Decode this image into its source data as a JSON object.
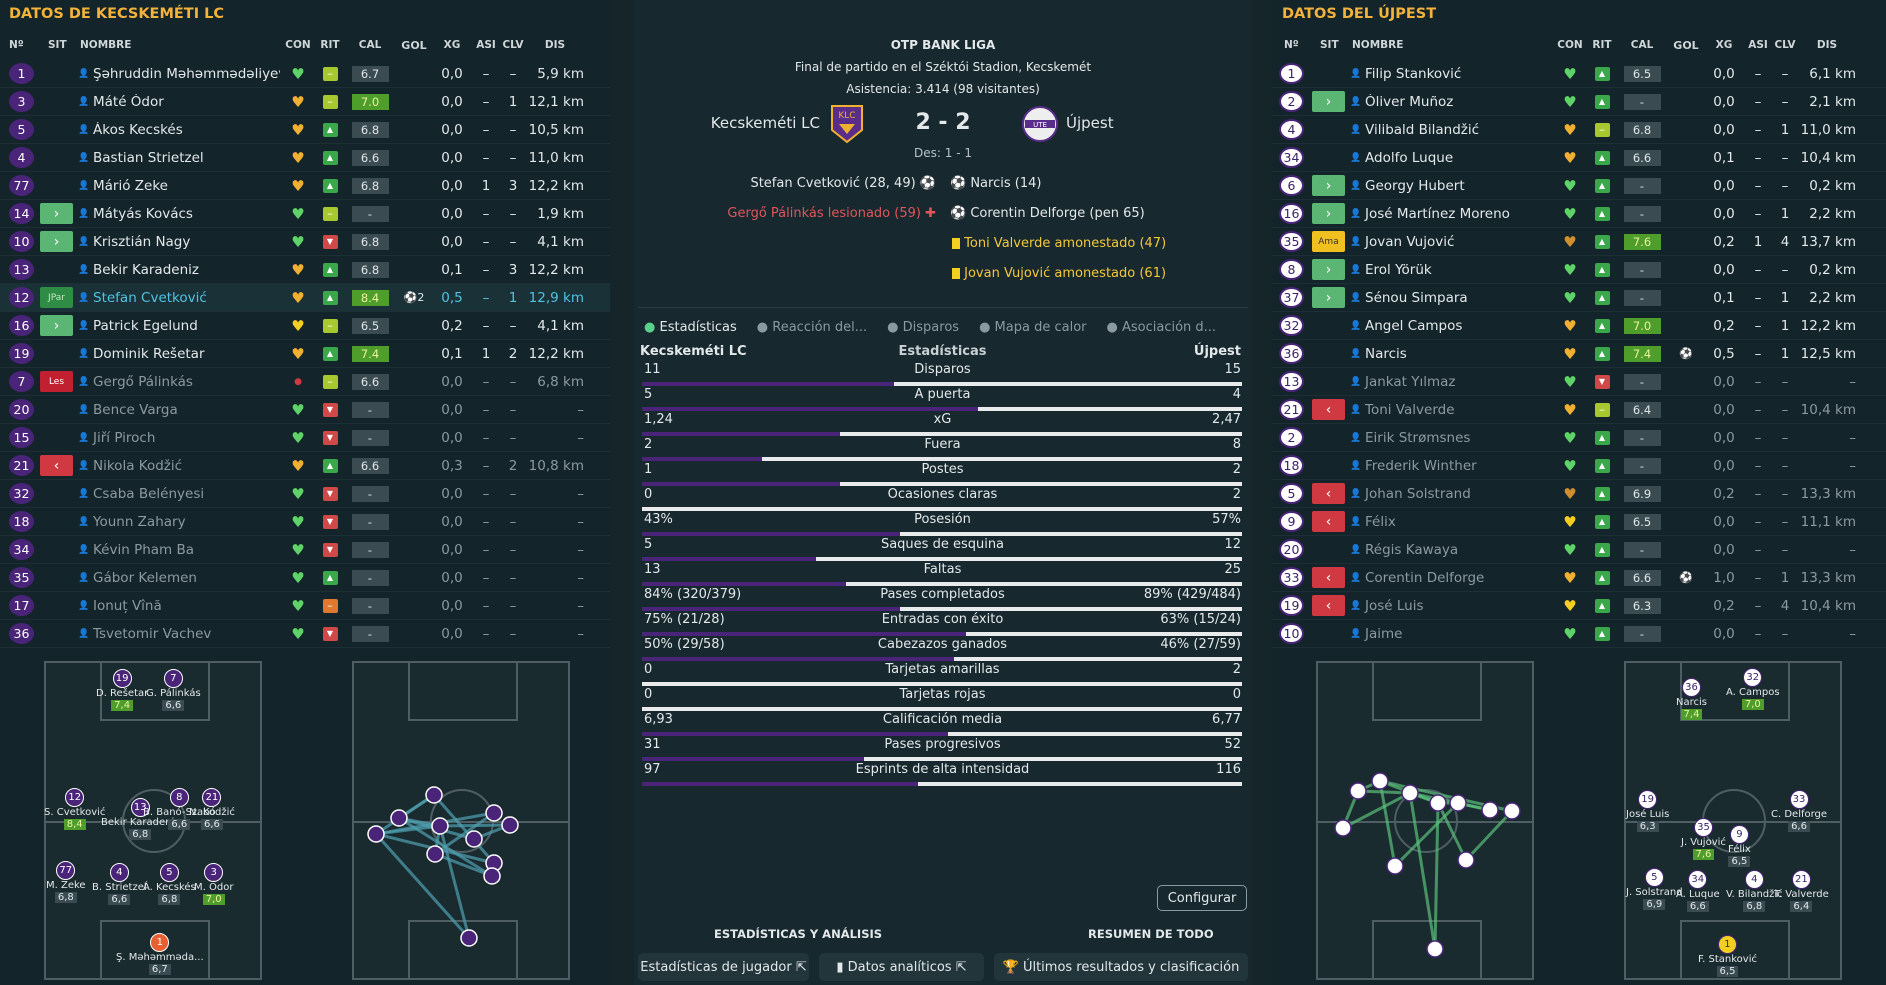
{
  "left": {
    "title": "DATOS DE KECSKEMÉTI LC",
    "headers": {
      "num": "Nº",
      "sit": "SIT",
      "name": "NOMBRE",
      "con": "CON",
      "rit": "RIT",
      "cal": "CAL",
      "gol": "GOL",
      "xg": "XG",
      "asi": "ASI",
      "clv": "CLV",
      "dis": "DIS"
    },
    "players": [
      {
        "n": "1",
        "sit": "",
        "name": "Şəhruddin Məhəmmədəliyev",
        "heart": "green",
        "rit": "-",
        "cal": "6.7",
        "calg": false,
        "gol": "",
        "xg": "0,0",
        "asi": "–",
        "clv": "–",
        "dis": "5,9 km",
        "dim": false
      },
      {
        "n": "3",
        "sit": "",
        "name": "Máté Ódor",
        "heart": "orange",
        "rit": "-",
        "cal": "7.0",
        "calg": true,
        "gol": "",
        "xg": "0,0",
        "asi": "–",
        "clv": "1",
        "dis": "12,1 km",
        "dim": false
      },
      {
        "n": "5",
        "sit": "",
        "name": "Ákos Kecskés",
        "heart": "orange",
        "rit": "up",
        "cal": "6.8",
        "calg": false,
        "gol": "",
        "xg": "0,0",
        "asi": "–",
        "clv": "–",
        "dis": "10,5 km",
        "dim": false
      },
      {
        "n": "4",
        "sit": "",
        "name": "Bastian Strietzel",
        "heart": "orange",
        "rit": "up",
        "cal": "6.6",
        "calg": false,
        "gol": "",
        "xg": "0,0",
        "asi": "–",
        "clv": "–",
        "dis": "11,0 km",
        "dim": false
      },
      {
        "n": "77",
        "sit": "",
        "name": "Márió Zeke",
        "heart": "orange",
        "rit": "up",
        "cal": "6.8",
        "calg": false,
        "gol": "",
        "xg": "0,0",
        "asi": "1",
        "clv": "3",
        "dis": "12,2 km",
        "dim": false
      },
      {
        "n": "14",
        "sit": "in",
        "name": "Mátyás Kovács",
        "heart": "green",
        "rit": "-",
        "cal": "-",
        "calg": false,
        "gol": "",
        "xg": "0,0",
        "asi": "–",
        "clv": "–",
        "dis": "1,9 km",
        "dim": false
      },
      {
        "n": "10",
        "sit": "in",
        "name": "Krisztián Nagy",
        "heart": "green",
        "rit": "down",
        "cal": "6.8",
        "calg": false,
        "gol": "",
        "xg": "0,0",
        "asi": "–",
        "clv": "–",
        "dis": "4,1 km",
        "dim": false
      },
      {
        "n": "13",
        "sit": "",
        "name": "Bekir Karadeniz",
        "heart": "orange",
        "rit": "up",
        "cal": "6.8",
        "calg": false,
        "gol": "",
        "xg": "0,1",
        "asi": "–",
        "clv": "3",
        "dis": "12,2 km",
        "dim": false
      },
      {
        "n": "12",
        "sit": "jpar",
        "sitlabel": "JPar",
        "name": "Stefan Cvetković",
        "heart": "orange",
        "rit": "up",
        "cal": "8.4",
        "calg": true,
        "gol": "2",
        "xg": "0,5",
        "asi": "–",
        "clv": "1",
        "dis": "12,9 km",
        "dim": false,
        "hl": true
      },
      {
        "n": "16",
        "sit": "in",
        "name": "Patrick Egelund",
        "heart": "yellow",
        "rit": "-",
        "cal": "6.5",
        "calg": false,
        "gol": "",
        "xg": "0,2",
        "asi": "–",
        "clv": "–",
        "dis": "4,1 km",
        "dim": false
      },
      {
        "n": "19",
        "sit": "",
        "name": "Dominik Rešetar",
        "heart": "orange",
        "rit": "up",
        "cal": "7.4",
        "calg": true,
        "gol": "",
        "xg": "0,1",
        "asi": "1",
        "clv": "2",
        "dis": "12,2 km",
        "dim": false
      },
      {
        "n": "7",
        "sit": "les",
        "sitlabel": "Les",
        "name": "Gergő Pálinkás",
        "heart": "red",
        "rit": "-",
        "cal": "6.6",
        "calg": false,
        "gol": "",
        "xg": "0,0",
        "asi": "–",
        "clv": "–",
        "dis": "6,8 km",
        "dim": true
      },
      {
        "n": "20",
        "sit": "",
        "name": "Bence Varga",
        "heart": "green",
        "rit": "down",
        "cal": "-",
        "calg": false,
        "gol": "",
        "xg": "0,0",
        "asi": "–",
        "clv": "–",
        "dis": "–",
        "dim": true
      },
      {
        "n": "15",
        "sit": "",
        "name": "Jiří Piroch",
        "heart": "green",
        "rit": "down",
        "cal": "-",
        "calg": false,
        "gol": "",
        "xg": "0,0",
        "asi": "–",
        "clv": "–",
        "dis": "–",
        "dim": true
      },
      {
        "n": "21",
        "sit": "out",
        "name": "Nikola Kodžić",
        "heart": "orange",
        "rit": "up",
        "cal": "6.6",
        "calg": false,
        "gol": "",
        "xg": "0,3",
        "asi": "–",
        "clv": "2",
        "dis": "10,8 km",
        "dim": true
      },
      {
        "n": "32",
        "sit": "",
        "name": "Csaba Belényesi",
        "heart": "green",
        "rit": "down",
        "cal": "-",
        "calg": false,
        "gol": "",
        "xg": "0,0",
        "asi": "–",
        "clv": "–",
        "dis": "–",
        "dim": true
      },
      {
        "n": "18",
        "sit": "",
        "name": "Younn Zahary",
        "heart": "green",
        "rit": "down",
        "cal": "-",
        "calg": false,
        "gol": "",
        "xg": "0,0",
        "asi": "–",
        "clv": "–",
        "dis": "–",
        "dim": true
      },
      {
        "n": "34",
        "sit": "",
        "name": "Kévin Pham Ba",
        "heart": "green",
        "rit": "down",
        "cal": "-",
        "calg": false,
        "gol": "",
        "xg": "0,0",
        "asi": "–",
        "clv": "–",
        "dis": "–",
        "dim": true
      },
      {
        "n": "35",
        "sit": "",
        "name": "Gábor Kelemen",
        "heart": "green",
        "rit": "up",
        "cal": "-",
        "calg": false,
        "gol": "",
        "xg": "0,0",
        "asi": "–",
        "clv": "–",
        "dis": "–",
        "dim": true
      },
      {
        "n": "17",
        "sit": "",
        "name": "Ionuț Vînă",
        "heart": "green",
        "rit": "-o",
        "cal": "-",
        "calg": false,
        "gol": "",
        "xg": "0,0",
        "asi": "–",
        "clv": "–",
        "dis": "–",
        "dim": true
      },
      {
        "n": "36",
        "sit": "",
        "name": "Tsvetomir Vachev",
        "heart": "green",
        "rit": "down",
        "cal": "-",
        "calg": false,
        "gol": "",
        "xg": "0,0",
        "asi": "–",
        "clv": "–",
        "dis": "–",
        "dim": true
      }
    ]
  },
  "right": {
    "title": "DATOS DEL ÚJPEST",
    "headers": {
      "num": "Nº",
      "sit": "SIT",
      "name": "NOMBRE",
      "con": "CON",
      "rit": "RIT",
      "cal": "CAL",
      "gol": "GOL",
      "xg": "XG",
      "asi": "ASI",
      "clv": "CLV",
      "dis": "DIS"
    },
    "players": [
      {
        "n": "1",
        "sit": "",
        "name": "Filip Stanković",
        "heart": "green",
        "rit": "up",
        "cal": "6.5",
        "calg": false,
        "gol": "",
        "xg": "0,0",
        "asi": "–",
        "clv": "–",
        "dis": "6,1 km",
        "dim": false
      },
      {
        "n": "2",
        "sit": "in",
        "name": "Óliver Muñoz",
        "heart": "green",
        "rit": "up",
        "cal": "-",
        "calg": false,
        "gol": "",
        "xg": "0,0",
        "asi": "–",
        "clv": "–",
        "dis": "2,1 km",
        "dim": false
      },
      {
        "n": "4",
        "sit": "",
        "name": "Vilibald Bilandžić",
        "heart": "orange",
        "rit": "-",
        "cal": "6.8",
        "calg": false,
        "gol": "",
        "xg": "0,0",
        "asi": "–",
        "clv": "1",
        "dis": "11,0 km",
        "dim": false
      },
      {
        "n": "34",
        "sit": "",
        "name": "Adolfo Luque",
        "heart": "orange",
        "rit": "up",
        "cal": "6.6",
        "calg": false,
        "gol": "",
        "xg": "0,1",
        "asi": "–",
        "clv": "–",
        "dis": "10,4 km",
        "dim": false
      },
      {
        "n": "6",
        "sit": "in",
        "name": "Georgy Hubert",
        "heart": "green",
        "rit": "up",
        "cal": "-",
        "calg": false,
        "gol": "",
        "xg": "0,0",
        "asi": "–",
        "clv": "–",
        "dis": "0,2 km",
        "dim": false
      },
      {
        "n": "16",
        "sit": "in",
        "name": "José Martínez Moreno",
        "heart": "green",
        "rit": "up",
        "cal": "-",
        "calg": false,
        "gol": "",
        "xg": "0,0",
        "asi": "–",
        "clv": "1",
        "dis": "2,2 km",
        "dim": false
      },
      {
        "n": "35",
        "sit": "ama",
        "sitlabel": "Ama",
        "name": "Jovan Vujović",
        "heart": "orange2",
        "rit": "up",
        "cal": "7.6",
        "calg": true,
        "gol": "",
        "xg": "0,2",
        "asi": "1",
        "clv": "4",
        "dis": "13,7 km",
        "dim": false
      },
      {
        "n": "8",
        "sit": "in",
        "name": "Erol Yörük",
        "heart": "green",
        "rit": "up",
        "cal": "-",
        "calg": false,
        "gol": "",
        "xg": "0,0",
        "asi": "–",
        "clv": "–",
        "dis": "0,2 km",
        "dim": false
      },
      {
        "n": "37",
        "sit": "in",
        "name": "Sénou Simpara",
        "heart": "green",
        "rit": "up",
        "cal": "-",
        "calg": false,
        "gol": "",
        "xg": "0,1",
        "asi": "–",
        "clv": "1",
        "dis": "2,2 km",
        "dim": false
      },
      {
        "n": "32",
        "sit": "",
        "name": "Angel Campos",
        "heart": "orange",
        "rit": "up",
        "cal": "7.0",
        "calg": true,
        "gol": "",
        "xg": "0,2",
        "asi": "–",
        "clv": "1",
        "dis": "12,2 km",
        "dim": false
      },
      {
        "n": "36",
        "sit": "",
        "name": "Narcis",
        "heart": "orange",
        "rit": "up",
        "cal": "7.4",
        "calg": true,
        "gol": "1",
        "xg": "0,5",
        "asi": "–",
        "clv": "1",
        "dis": "12,5 km",
        "dim": false
      },
      {
        "n": "13",
        "sit": "",
        "name": "Jankat Yılmaz",
        "heart": "green",
        "rit": "down",
        "cal": "-",
        "calg": false,
        "gol": "",
        "xg": "0,0",
        "asi": "–",
        "clv": "–",
        "dis": "–",
        "dim": true
      },
      {
        "n": "21",
        "sit": "out",
        "name": "Toni Valverde",
        "heart": "orange",
        "rit": "-",
        "cal": "6.4",
        "calg": false,
        "gol": "",
        "xg": "0,0",
        "asi": "–",
        "clv": "–",
        "dis": "10,4 km",
        "dim": true
      },
      {
        "n": "2",
        "sit": "",
        "name": "Eirik Strømsnes",
        "heart": "green",
        "rit": "up",
        "cal": "-",
        "calg": false,
        "gol": "",
        "xg": "0,0",
        "asi": "–",
        "clv": "–",
        "dis": "–",
        "dim": true
      },
      {
        "n": "18",
        "sit": "",
        "name": "Frederik Winther",
        "heart": "green",
        "rit": "up",
        "cal": "-",
        "calg": false,
        "gol": "",
        "xg": "0,0",
        "asi": "–",
        "clv": "–",
        "dis": "–",
        "dim": true
      },
      {
        "n": "5",
        "sit": "out",
        "name": "Johan Solstrand",
        "heart": "orange2",
        "rit": "up",
        "cal": "6.9",
        "calg": false,
        "gol": "",
        "xg": "0,2",
        "asi": "–",
        "clv": "–",
        "dis": "13,3 km",
        "dim": true
      },
      {
        "n": "9",
        "sit": "out",
        "name": "Félix",
        "heart": "yellow",
        "rit": "up",
        "cal": "6.5",
        "calg": false,
        "gol": "",
        "xg": "0,0",
        "asi": "–",
        "clv": "–",
        "dis": "11,1 km",
        "dim": true
      },
      {
        "n": "20",
        "sit": "",
        "name": "Régis Kawaya",
        "heart": "green",
        "rit": "up",
        "cal": "-",
        "calg": false,
        "gol": "",
        "xg": "0,0",
        "asi": "–",
        "clv": "–",
        "dis": "–",
        "dim": true
      },
      {
        "n": "33",
        "sit": "out",
        "name": "Corentin Delforge",
        "heart": "orange",
        "rit": "up",
        "cal": "6.6",
        "calg": false,
        "gol": "1",
        "xg": "1,0",
        "asi": "–",
        "clv": "1",
        "dis": "13,3 km",
        "dim": true
      },
      {
        "n": "19",
        "sit": "out",
        "name": "José Luis",
        "heart": "yellow",
        "rit": "up",
        "cal": "6.3",
        "calg": false,
        "gol": "",
        "xg": "0,2",
        "asi": "–",
        "clv": "4",
        "dis": "10,4 km",
        "dim": true
      },
      {
        "n": "10",
        "sit": "",
        "name": "Jaime",
        "heart": "green",
        "rit": "up",
        "cal": "-",
        "calg": false,
        "gol": "",
        "xg": "0,0",
        "asi": "–",
        "clv": "–",
        "dis": "–",
        "dim": true
      }
    ]
  },
  "match": {
    "league": "OTP BANK LIGA",
    "venue": "Final de partido en el Széktói Stadion, Kecskemét",
    "attendance": "Asistencia: 3.414 (98 visitantes)",
    "home": "Kecskeméti LC",
    "away": "Újpest",
    "score": "2 - 2",
    "des": "Des: 1 - 1",
    "home_events": [
      "Stefan Cvetković (28, 49)",
      "Gergő Pálinkás lesionado (59)"
    ],
    "away_events": [
      "Narcis (14)",
      "Corentin Delforge (pen 65)",
      "Toni Valverde amonestado (47)",
      "Jovan Vujović amonestado (61)"
    ]
  },
  "tabs": [
    "Estadísticas",
    "Reacción del...",
    "Disparos",
    "Mapa de calor",
    "Asociación d..."
  ],
  "stats_header": {
    "home": "Kecskeméti LC",
    "mid": "Estadísticas",
    "away": "Újpest"
  },
  "stats": [
    {
      "l": "11",
      "m": "Disparos",
      "r": "15",
      "p": 0.42
    },
    {
      "l": "5",
      "m": "A puerta",
      "r": "4",
      "p": 0.56
    },
    {
      "l": "1,24",
      "m": "xG",
      "r": "2,47",
      "p": 0.33
    },
    {
      "l": "2",
      "m": "Fuera",
      "r": "8",
      "p": 0.2
    },
    {
      "l": "1",
      "m": "Postes",
      "r": "2",
      "p": 0.33
    },
    {
      "l": "0",
      "m": "Ocasiones claras",
      "r": "2",
      "p": 0.0
    },
    {
      "l": "43%",
      "m": "Posesión",
      "r": "57%",
      "p": 0.43
    },
    {
      "l": "5",
      "m": "Saques de esquina",
      "r": "12",
      "p": 0.29
    },
    {
      "l": "13",
      "m": "Faltas",
      "r": "25",
      "p": 0.34
    },
    {
      "l": "84% (320/379)",
      "m": "Pases completados",
      "r": "89% (429/484)",
      "p": 0.43
    },
    {
      "l": "75% (21/28)",
      "m": "Entradas con éxito",
      "r": "63% (15/24)",
      "p": 0.54
    },
    {
      "l": "50% (29/58)",
      "m": "Cabezazos ganados",
      "r": "46% (27/59)",
      "p": 0.52
    },
    {
      "l": "0",
      "m": "Tarjetas amarillas",
      "r": "2",
      "p": 0.0
    },
    {
      "l": "0",
      "m": "Tarjetas rojas",
      "r": "0",
      "p": 0.0
    },
    {
      "l": "6,93",
      "m": "Calificación media",
      "r": "6,77",
      "p": 0.51
    },
    {
      "l": "31",
      "m": "Pases progresivos",
      "r": "52",
      "p": 0.37
    },
    {
      "l": "97",
      "m": "Esprints de alta intensidad",
      "r": "116",
      "p": 0.46
    }
  ],
  "configure": "Configurar",
  "section_left": "ESTADÍSTICAS Y ANÁLISIS",
  "section_right": "RESUMEN DE TODO",
  "buttons": [
    "Estadísticas de jugador",
    "Datos analíticos",
    "Últimos resultados y clasificación"
  ],
  "left_form": [
    {
      "n": "19",
      "name": "D. Rešetar",
      "r": "7,4",
      "g": true
    },
    {
      "n": "7",
      "name": "G. Pálinkás",
      "r": "6,6",
      "g": false
    },
    {
      "n": "12",
      "name": "S. Cvetković",
      "r": "8,4",
      "g": true
    },
    {
      "n": "13",
      "name": "Bekir Karadeniz",
      "r": "6,8",
      "g": false
    },
    {
      "n": "8",
      "name": "B. Banó-Szabó",
      "r": "6,6",
      "g": false
    },
    {
      "n": "21",
      "name": "N. Kodžić",
      "r": "6,6",
      "g": false
    },
    {
      "n": "77",
      "name": "M. Zeke",
      "r": "6,8",
      "g": false
    },
    {
      "n": "4",
      "name": "B. Strietzel",
      "r": "6,6",
      "g": false
    },
    {
      "n": "5",
      "name": "Á. Kecskés",
      "r": "6,8",
      "g": false
    },
    {
      "n": "3",
      "name": "M. Ódor",
      "r": "7,0",
      "g": true
    },
    {
      "n": "1",
      "name": "Ş. Məhəmməda...",
      "r": "6,7",
      "g": false
    }
  ],
  "right_form": [
    {
      "n": "36",
      "name": "Narcis",
      "r": "7,4",
      "g": true
    },
    {
      "n": "32",
      "name": "A. Campos",
      "r": "7,0",
      "g": true
    },
    {
      "n": "19",
      "name": "José Luis",
      "r": "6,3",
      "g": false
    },
    {
      "n": "33",
      "name": "C. Delforge",
      "r": "6,6",
      "g": false
    },
    {
      "n": "35",
      "name": "J. Vujović",
      "r": "7,6",
      "g": true
    },
    {
      "n": "9",
      "name": "Félix",
      "r": "6,5",
      "g": false
    },
    {
      "n": "5",
      "name": "J. Solstrand",
      "r": "6,9",
      "g": false
    },
    {
      "n": "34",
      "name": "A. Luque",
      "r": "6,6",
      "g": false
    },
    {
      "n": "4",
      "name": "V. Bilandžić",
      "r": "6,8",
      "g": false
    },
    {
      "n": "21",
      "name": "T. Valverde",
      "r": "6,4",
      "g": false
    },
    {
      "n": "1",
      "name": "F. Stanković",
      "r": "6,5",
      "g": false
    }
  ]
}
